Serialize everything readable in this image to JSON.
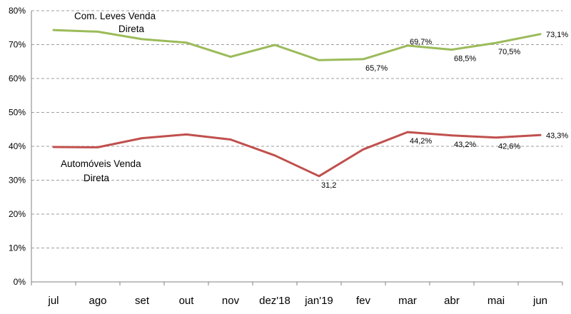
{
  "chart_data": {
    "type": "line",
    "categories": [
      "jul",
      "ago",
      "set",
      "out",
      "nov",
      "dez'18",
      "jan'19",
      "fev",
      "mar",
      "abr",
      "mai",
      "jun"
    ],
    "ylim": [
      0,
      80
    ],
    "y_ticks": [
      "0%",
      "10%",
      "20%",
      "30%",
      "40%",
      "50%",
      "60%",
      "70%",
      "80%"
    ],
    "grid": "horizontal dashed",
    "legend": "inline labels",
    "series": [
      {
        "name": "Com. Leves Venda Direta",
        "name_lines": [
          "Com. Leves Venda",
          "Direta"
        ],
        "color": "#9BBB59",
        "values": [
          74.3,
          73.8,
          71.6,
          70.6,
          66.4,
          69.9,
          65.4,
          65.7,
          69.7,
          68.5,
          70.5,
          73.1
        ],
        "data_labels": [
          "",
          "",
          "",
          "",
          "",
          "",
          "",
          "65,7%",
          "69,7%",
          "68,5%",
          "70,5%",
          "73,1%"
        ]
      },
      {
        "name": "Automóveis Venda Direta",
        "name_lines": [
          "Automóveis Venda",
          "Direta"
        ],
        "color": "#C0504D",
        "values": [
          39.8,
          39.7,
          42.4,
          43.5,
          42.0,
          37.3,
          31.2,
          39.1,
          44.2,
          43.2,
          42.6,
          43.3
        ],
        "data_labels": [
          "",
          "",
          "",
          "",
          "",
          "",
          "31,2",
          "",
          "44,2%",
          "43,2%",
          "42,6%",
          "43,3%"
        ]
      }
    ]
  }
}
